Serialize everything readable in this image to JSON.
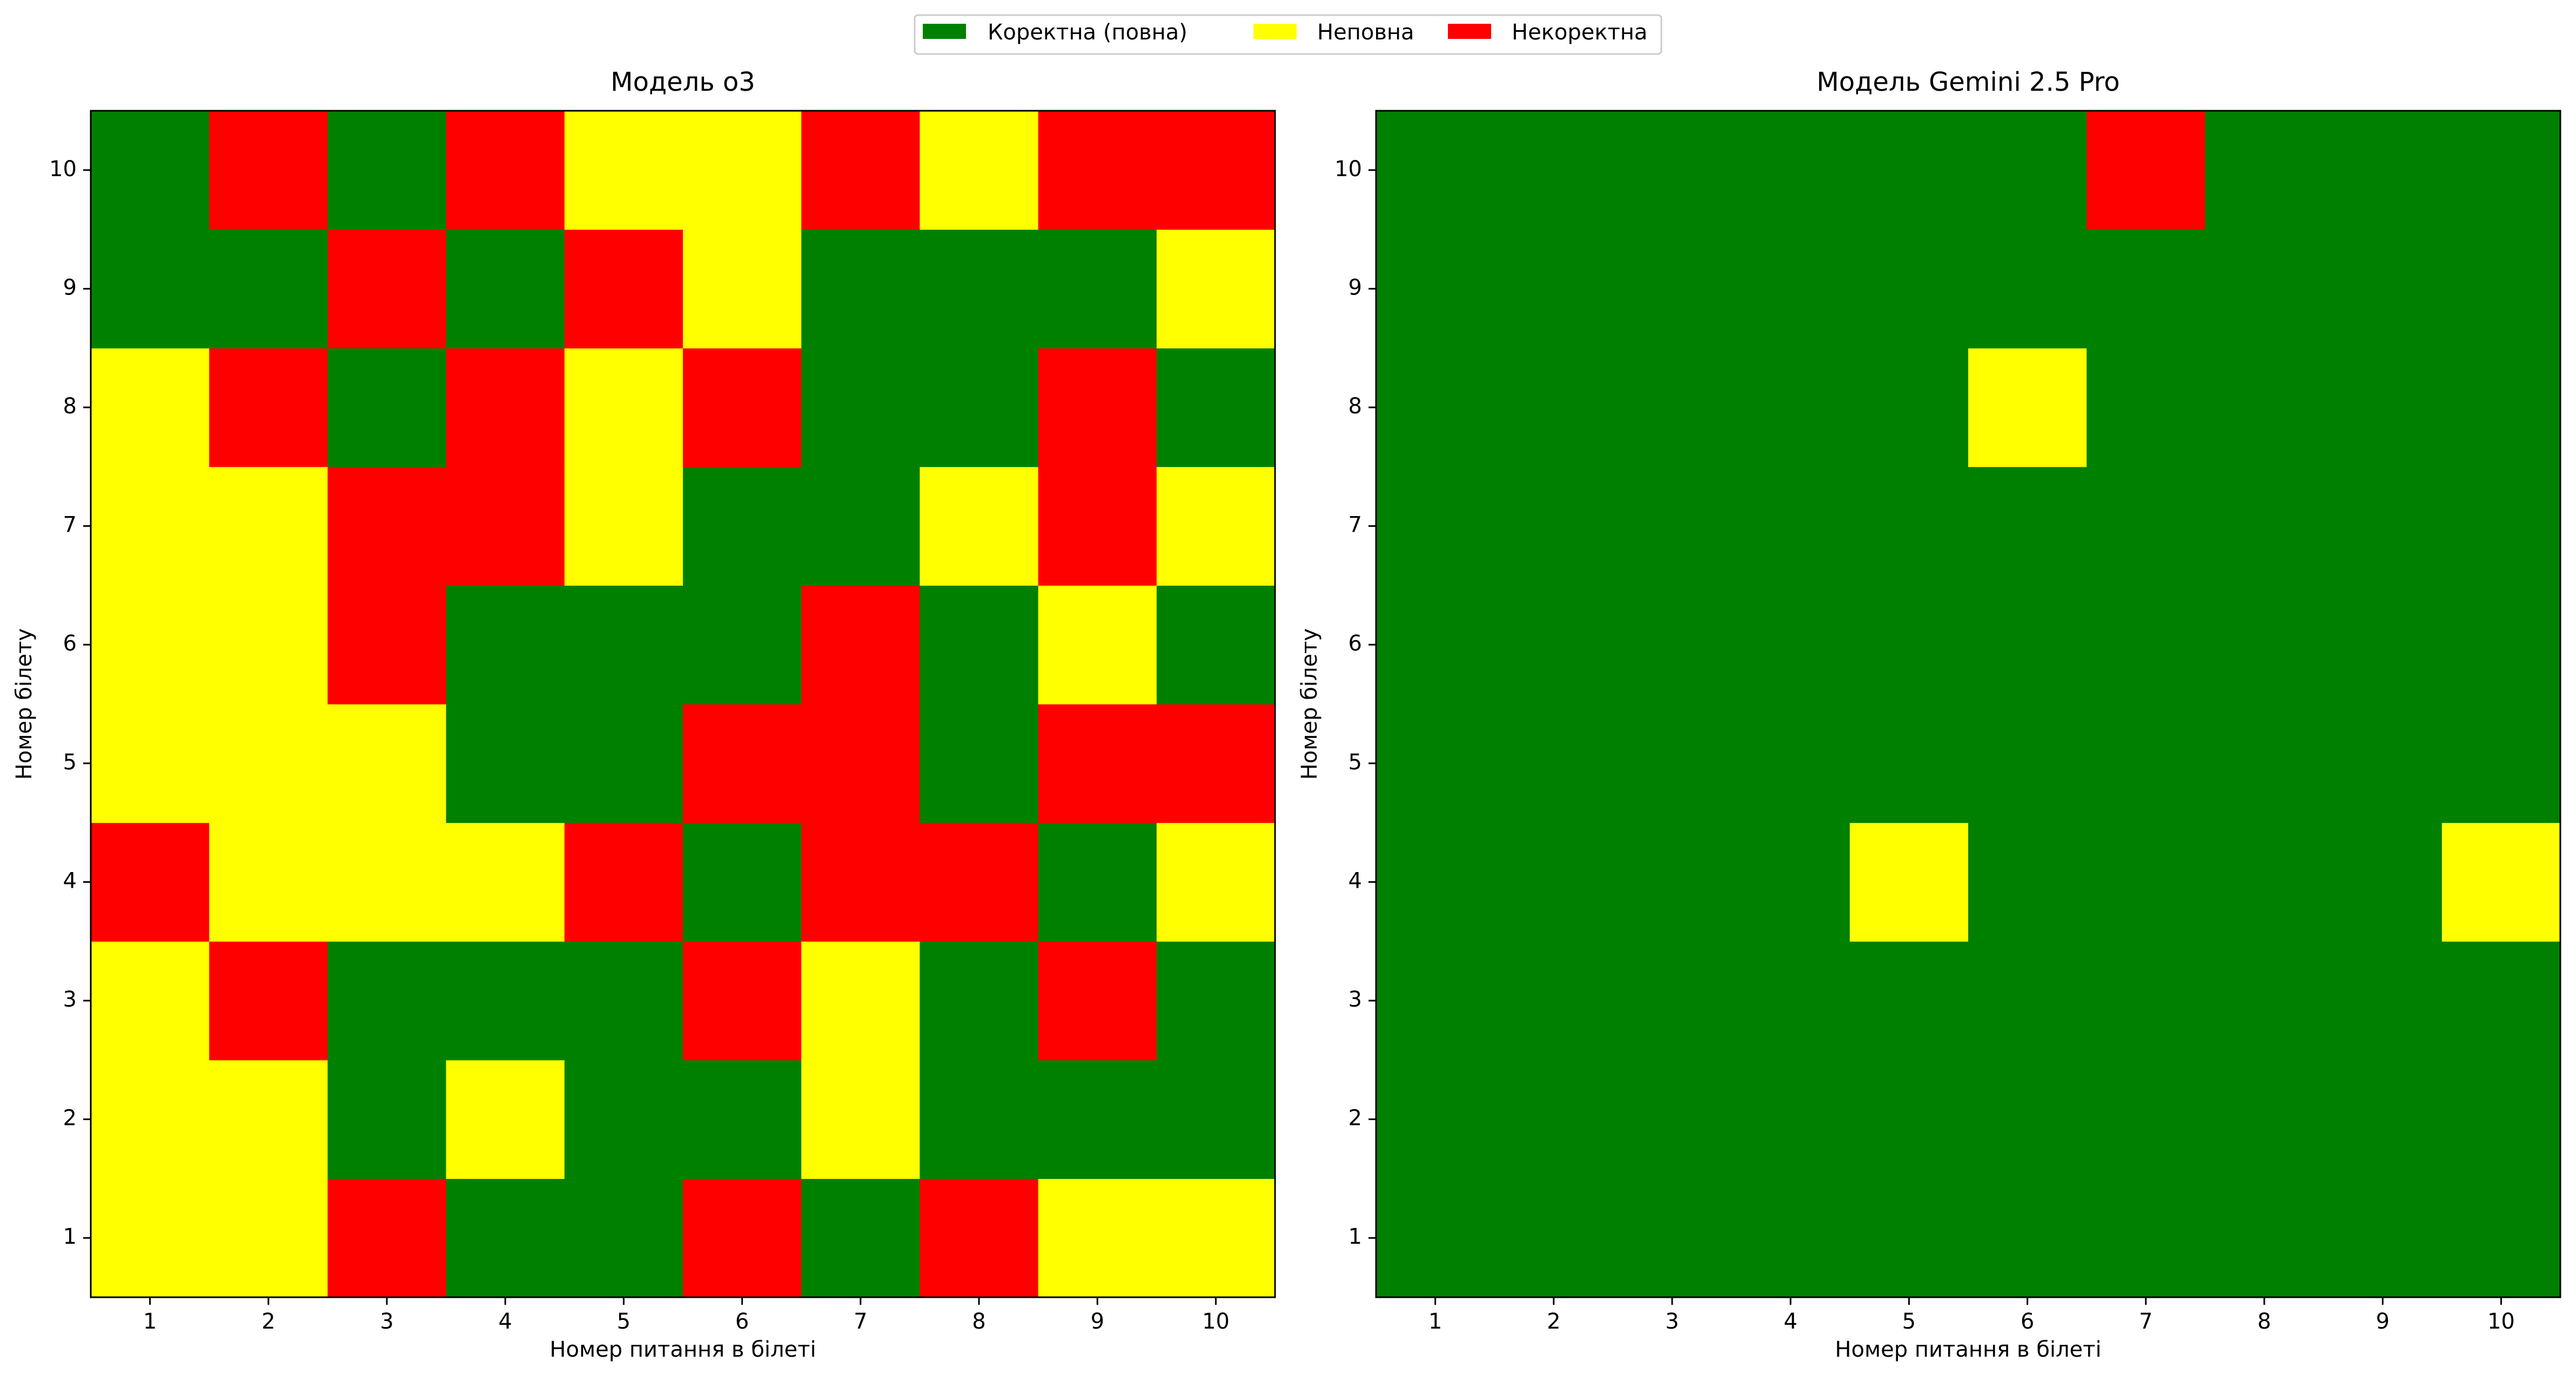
{
  "legend": {
    "items": [
      {
        "key": 1,
        "label": "Коректна (повна)",
        "color": "#008000"
      },
      {
        "key": 0.5,
        "label": "Неповна",
        "color": "#ffff00"
      },
      {
        "key": 0,
        "label": "Некоректна",
        "color": "#ff0000"
      }
    ]
  },
  "chart_data": [
    {
      "type": "heatmap",
      "title": "Модель o3",
      "xlabel": "Номер питання в білеті",
      "ylabel": "Номер білету",
      "x": [
        1,
        2,
        3,
        4,
        5,
        6,
        7,
        8,
        9,
        10
      ],
      "y": [
        1,
        2,
        3,
        4,
        5,
        6,
        7,
        8,
        9,
        10
      ],
      "value_meaning": {
        "1": "Коректна (повна)",
        "0.5": "Неповна",
        "0": "Некоректна"
      },
      "values": [
        [
          0.5,
          0.5,
          0,
          1,
          1,
          0,
          1,
          0,
          0.5,
          0.5
        ],
        [
          0.5,
          0.5,
          1,
          0.5,
          1,
          1,
          0.5,
          1,
          1,
          1
        ],
        [
          0.5,
          0,
          1,
          1,
          1,
          0,
          0.5,
          1,
          0,
          1
        ],
        [
          0,
          0.5,
          0.5,
          0.5,
          0,
          1,
          0,
          0,
          1,
          0.5
        ],
        [
          0.5,
          0.5,
          0.5,
          1,
          1,
          0,
          0,
          1,
          0,
          0
        ],
        [
          0.5,
          0.5,
          0,
          1,
          1,
          1,
          0,
          1,
          0.5,
          1
        ],
        [
          0.5,
          0.5,
          0,
          0,
          0.5,
          1,
          1,
          0.5,
          0,
          0.5
        ],
        [
          0.5,
          0,
          1,
          0,
          0.5,
          0,
          1,
          1,
          0,
          1
        ],
        [
          1,
          1,
          0,
          1,
          0,
          0.5,
          1,
          1,
          1,
          0.5
        ],
        [
          1,
          0,
          1,
          0,
          0.5,
          0.5,
          0,
          0.5,
          0,
          0
        ]
      ]
    },
    {
      "type": "heatmap",
      "title": "Модель Gemini 2.5 Pro",
      "xlabel": "Номер питання в білеті",
      "ylabel": "Номер білету",
      "x": [
        1,
        2,
        3,
        4,
        5,
        6,
        7,
        8,
        9,
        10
      ],
      "y": [
        1,
        2,
        3,
        4,
        5,
        6,
        7,
        8,
        9,
        10
      ],
      "value_meaning": {
        "1": "Коректна (повна)",
        "0.5": "Неповна",
        "0": "Некоректна"
      },
      "values": [
        [
          1,
          1,
          1,
          1,
          1,
          1,
          1,
          1,
          1,
          1
        ],
        [
          1,
          1,
          1,
          1,
          1,
          1,
          1,
          1,
          1,
          1
        ],
        [
          1,
          1,
          1,
          1,
          1,
          1,
          1,
          1,
          1,
          1
        ],
        [
          1,
          1,
          1,
          1,
          0.5,
          1,
          1,
          1,
          1,
          0.5
        ],
        [
          1,
          1,
          1,
          1,
          1,
          1,
          1,
          1,
          1,
          1
        ],
        [
          1,
          1,
          1,
          1,
          1,
          1,
          1,
          1,
          1,
          1
        ],
        [
          1,
          1,
          1,
          1,
          1,
          1,
          1,
          1,
          1,
          1
        ],
        [
          1,
          1,
          1,
          1,
          1,
          0.5,
          1,
          1,
          1,
          1
        ],
        [
          1,
          1,
          1,
          1,
          1,
          1,
          1,
          1,
          1,
          1
        ],
        [
          1,
          1,
          1,
          1,
          1,
          1,
          0,
          1,
          1,
          1
        ]
      ]
    }
  ]
}
